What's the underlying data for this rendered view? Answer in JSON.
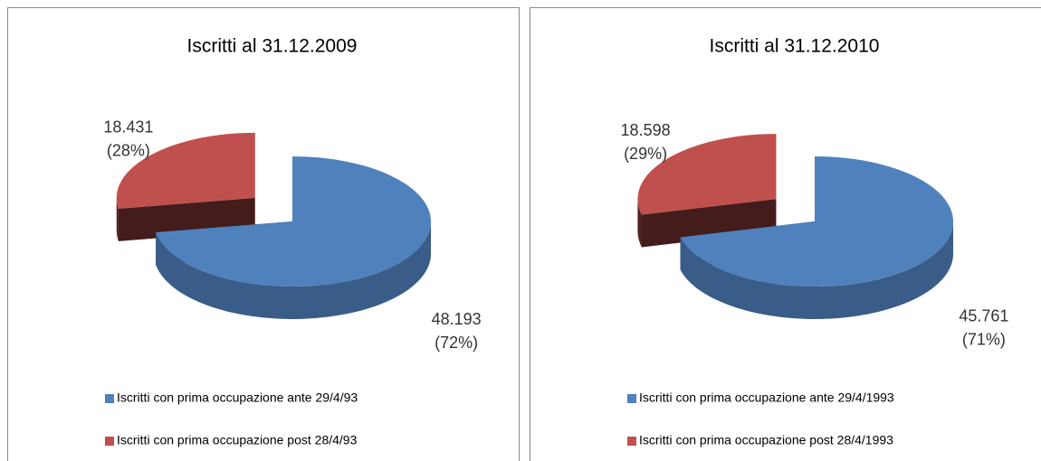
{
  "chart_data": [
    {
      "type": "pie",
      "title": "Iscritti al 31.12.2009",
      "categories": [
        "Iscritti con prima occupazione ante 29/4/93",
        "Iscritti con prima occupazione post 28/4/93"
      ],
      "values": [
        48193,
        18431
      ],
      "value_labels": [
        "48.193",
        "18.431"
      ],
      "percent_labels": [
        "(72%)",
        "(28%)"
      ],
      "colors": [
        "#4f81bd",
        "#c0504d"
      ],
      "legend": "bottom"
    },
    {
      "type": "pie",
      "title": "Iscritti al 31.12.2010",
      "categories": [
        "Iscritti con prima occupazione ante 29/4/1993",
        "Iscritti con prima occupazione post 28/4/1993"
      ],
      "values": [
        45761,
        18598
      ],
      "value_labels": [
        "45.761",
        "18.598"
      ],
      "percent_labels": [
        "(71%)",
        "(29%)"
      ],
      "colors": [
        "#4f81bd",
        "#c0504d"
      ],
      "legend": "bottom"
    }
  ]
}
